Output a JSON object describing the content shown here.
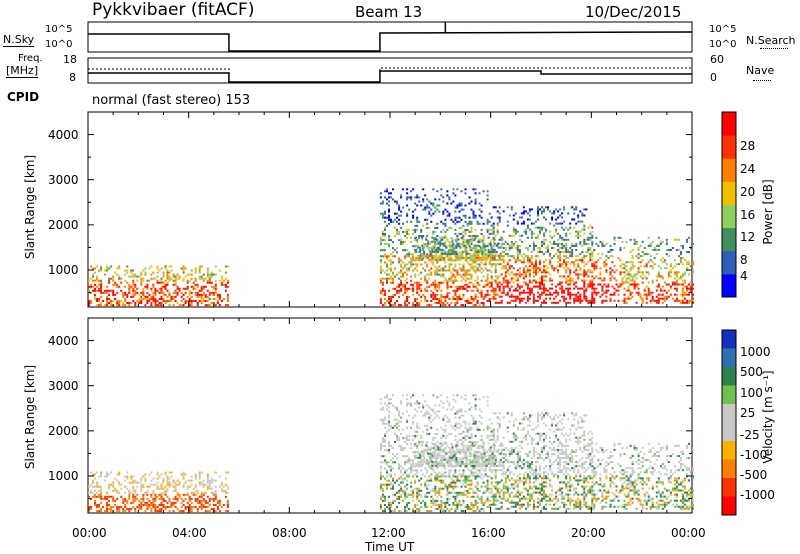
{
  "header": {
    "station": "Pykkvibaer (fitACF)",
    "beam": "Beam 13",
    "date": "10/Dec/2015"
  },
  "noise_panel": {
    "left_label": "N.Sky",
    "left_ticks": [
      "10^5",
      "10^0"
    ],
    "right_label": "N.Search",
    "right_ticks": [
      "10^5",
      "10^0"
    ]
  },
  "freq_panel": {
    "left_label_1": "Freq.",
    "left_label_2": "[MHz]",
    "left_ticks": [
      "18",
      "8"
    ],
    "right_label": "Nave",
    "right_ticks": [
      "60",
      "0"
    ]
  },
  "cpid": {
    "label": "CPID",
    "text": "normal (fast stereo) 153"
  },
  "x_axis": {
    "title": "Time UT",
    "ticks": [
      "00:00",
      "04:00",
      "08:00",
      "12:00",
      "16:00",
      "20:00",
      "00:00"
    ]
  },
  "power_panel": {
    "ylabel": "Slant Range [km]",
    "yticks": [
      "4000",
      "3000",
      "2000",
      "1000"
    ],
    "cbar_label": "Power [dB]",
    "cbar_ticks": [
      "28",
      "24",
      "20",
      "16",
      "12",
      "8",
      "4"
    ]
  },
  "velocity_panel": {
    "ylabel": "Slant Range [km]",
    "yticks": [
      "4000",
      "3000",
      "2000",
      "1000"
    ],
    "cbar_label": "Velocity [m s⁻¹]",
    "cbar_ticks": [
      "1000",
      "500",
      "100",
      "25",
      "-25",
      "-100",
      "-500",
      "-1000"
    ]
  },
  "colors": {
    "power_scale": [
      "#0000ff",
      "#2f5fb8",
      "#3f8f5f",
      "#8fcf5f",
      "#f0c000",
      "#ff7f00",
      "#ff3000",
      "#ff0000"
    ],
    "velocity_scale": [
      "#1030c0",
      "#3070b0",
      "#2f7f4f",
      "#70c050",
      "#c8c8c8",
      "#c8c8c8",
      "#ffb000",
      "#ff8000",
      "#ff3000",
      "#ff0000"
    ]
  },
  "chart_data": [
    {
      "type": "line",
      "title": "Pykkvibaer (fitACF)",
      "xlabel": "",
      "ylabel": "N.Sky",
      "x": [
        0,
        5.6,
        5.6,
        11.6,
        11.6,
        24
      ],
      "y_note": "operating on 00:00-05:36 and 11:36-24:00; off otherwise",
      "series": [
        {
          "values": [
            "high",
            "high",
            "off",
            "off",
            "high",
            "high"
          ]
        }
      ]
    },
    {
      "type": "line",
      "ylabel": "Freq. [MHz]",
      "y2label": "Nave",
      "ylim": [
        8,
        18
      ],
      "series": [
        {
          "x": [
            0,
            5.6,
            11.6,
            24
          ],
          "values": [
            11,
            11,
            11.5,
            11.5
          ]
        },
        {
          "x": [
            0,
            5.6,
            11.6,
            18,
            18,
            24
          ],
          "values": [
            10,
            10,
            12,
            12,
            10,
            10
          ]
        }
      ]
    },
    {
      "type": "heatmap",
      "ylabel": "Slant Range [km]",
      "colorbar_label": "Power [dB]",
      "xlim": [
        0,
        24
      ],
      "ylim": [
        180,
        4500
      ],
      "colorbar": [
        0,
        32
      ]
    },
    {
      "type": "heatmap",
      "ylabel": "Slant Range [km]",
      "colorbar_label": "Velocity [m s⁻¹]",
      "xlim": [
        0,
        24
      ],
      "ylim": [
        180,
        4500
      ],
      "colorbar_ticks": [
        1000,
        500,
        100,
        25,
        -25,
        -100,
        -500,
        -1000
      ]
    }
  ]
}
